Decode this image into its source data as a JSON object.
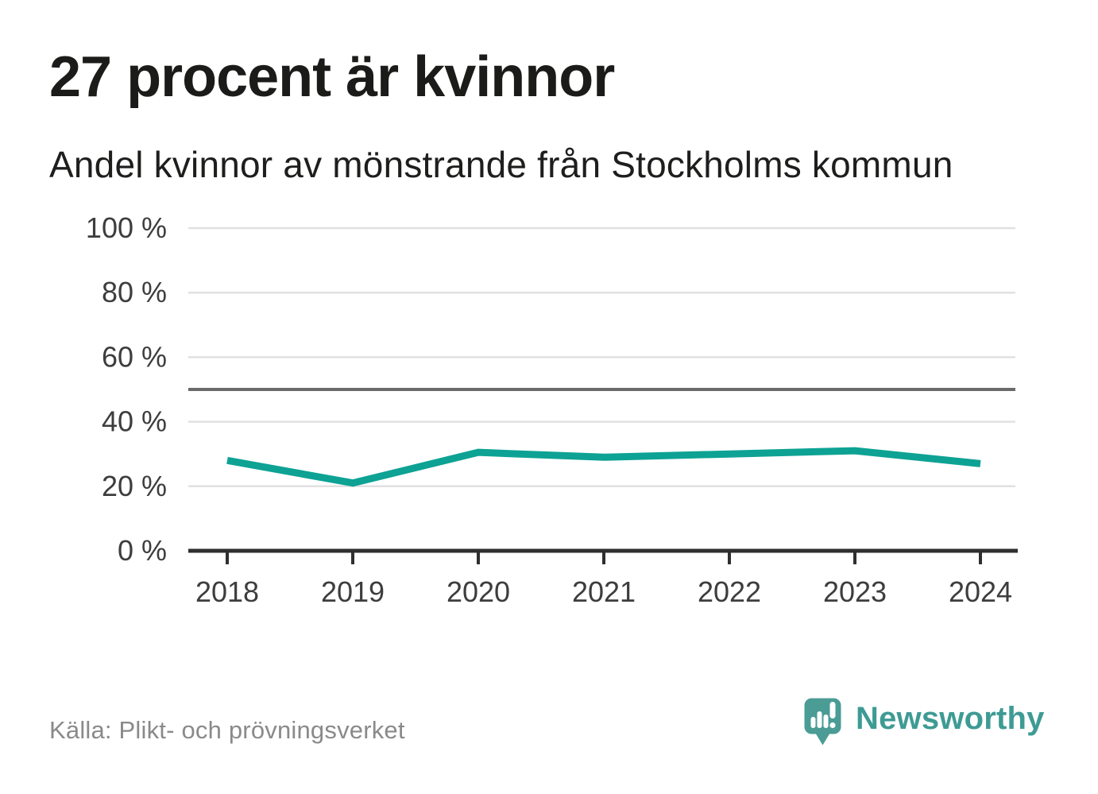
{
  "header": {
    "title": "27 procent är kvinnor",
    "subtitle": "Andel kvinnor av mönstrande från Stockholms kommun"
  },
  "chart_data": {
    "type": "line",
    "title": "27 procent är kvinnor",
    "subtitle": "Andel kvinnor av mönstrande från Stockholms kommun",
    "categories": [
      "2018",
      "2019",
      "2020",
      "2021",
      "2022",
      "2023",
      "2024"
    ],
    "series": [
      {
        "name": "Andel kvinnor av mönstrande",
        "values": [
          28,
          21,
          30.5,
          29,
          30,
          31,
          27
        ]
      }
    ],
    "unit": "%",
    "ylim": [
      0,
      100
    ],
    "yticks": [
      0,
      20,
      40,
      60,
      80,
      100
    ],
    "ytick_suffix": " %",
    "reference_line": 50,
    "grid": true,
    "legend_position": "none",
    "colors": {
      "line": "#0da294",
      "gridline": "#e1e1e1",
      "reference_line": "#6a6a6a",
      "axis": "#2f2f2f",
      "tick_labels": "#3d3d3d"
    }
  },
  "footer": {
    "source": "Källa: Plikt- och prövningsverket",
    "brand": "Newsworthy",
    "brand_color": "#3e9b94",
    "logo_icon": "newsworthy-speech-bubble-bar-chart-icon"
  }
}
